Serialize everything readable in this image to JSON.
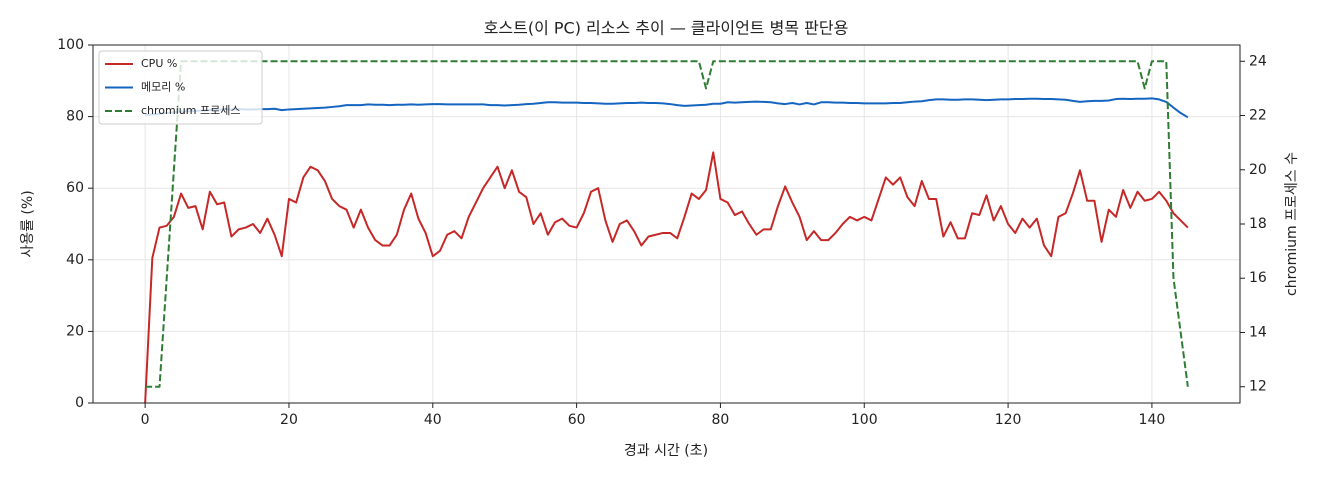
{
  "chart_data": {
    "type": "line",
    "title": "호스트(이 PC) 리소스 추이 — 클라이언트 병목 판단용",
    "xlabel": "경과 시간 (초)",
    "ylabel": "사용률 (%)",
    "y2label": "chromium 프로세스 수",
    "x": [
      0,
      1,
      2,
      3,
      4,
      5,
      6,
      7,
      8,
      9,
      10,
      11,
      12,
      13,
      14,
      15,
      16,
      17,
      18,
      19,
      20,
      21,
      22,
      23,
      24,
      25,
      26,
      27,
      28,
      29,
      30,
      31,
      32,
      33,
      34,
      35,
      36,
      37,
      38,
      39,
      40,
      41,
      42,
      43,
      44,
      45,
      46,
      47,
      48,
      49,
      50,
      51,
      52,
      53,
      54,
      55,
      56,
      57,
      58,
      59,
      60,
      61,
      62,
      63,
      64,
      65,
      66,
      67,
      68,
      69,
      70,
      71,
      72,
      73,
      74,
      75,
      76,
      77,
      78,
      79,
      80,
      81,
      82,
      83,
      84,
      85,
      86,
      87,
      88,
      89,
      90,
      91,
      92,
      93,
      94,
      95,
      96,
      97,
      98,
      99,
      100,
      101,
      102,
      103,
      104,
      105,
      106,
      107,
      108,
      109,
      110,
      111,
      112,
      113,
      114,
      115,
      116,
      117,
      118,
      119,
      120,
      121,
      122,
      123,
      124,
      125,
      126,
      127,
      128,
      129,
      130,
      131,
      132,
      133,
      134,
      135,
      136,
      137,
      138,
      139,
      140,
      141,
      142,
      143,
      144,
      145
    ],
    "series": [
      {
        "name": "CPU %",
        "color": "#c62828",
        "linestyle": "solid",
        "axis": "y",
        "values": [
          0,
          40.5,
          49,
          49.5,
          52,
          58.5,
          54.5,
          55,
          48.5,
          59,
          55.5,
          56,
          46.5,
          48.5,
          49,
          50,
          47.5,
          51.5,
          47,
          41,
          57,
          56,
          63,
          66,
          65,
          62,
          57,
          55,
          54,
          49,
          54,
          49,
          45.5,
          44,
          44,
          47,
          54,
          58.5,
          51.5,
          47.5,
          41,
          42.5,
          47,
          48,
          46,
          52,
          56,
          60,
          63,
          66,
          60,
          65,
          59,
          57.5,
          50,
          53,
          47,
          50.5,
          51.5,
          49.5,
          49,
          53,
          59,
          60,
          51,
          45,
          50,
          51,
          48,
          44,
          46.5,
          47,
          47.5,
          47.5,
          46,
          52,
          58.5,
          57,
          59.5,
          70,
          57,
          56,
          52.5,
          53.5,
          50,
          47,
          48.5,
          48.5,
          55,
          60.5,
          56,
          52,
          45.5,
          48,
          45.5,
          45.5,
          47.5,
          50,
          52,
          51,
          52,
          51,
          57,
          63,
          61,
          63,
          57.5,
          55,
          62,
          57,
          57,
          46.5,
          50.5,
          46,
          46,
          53,
          52.5,
          58,
          51,
          55,
          50,
          47.5,
          51.5,
          49,
          51.5,
          44,
          41,
          52,
          53,
          58.5,
          65,
          56.5,
          56.5,
          45,
          54,
          52,
          59.5,
          54.5,
          59,
          56.5,
          57,
          59,
          56.5,
          53,
          51,
          49
        ]
      },
      {
        "name": "메모리 %",
        "color": "#1565c0",
        "linestyle": "solid",
        "axis": "y",
        "values": [
          80.5,
          80.6,
          80.8,
          81,
          81.2,
          81.4,
          81.5,
          81.6,
          81.7,
          81.8,
          81.9,
          82,
          82,
          82.1,
          82,
          82,
          82.1,
          82.1,
          82.2,
          81.8,
          82,
          82.1,
          82.2,
          82.3,
          82.4,
          82.5,
          82.7,
          82.9,
          83.2,
          83.2,
          83.2,
          83.4,
          83.3,
          83.3,
          83.2,
          83.3,
          83.3,
          83.4,
          83.3,
          83.4,
          83.5,
          83.5,
          83.4,
          83.4,
          83.4,
          83.4,
          83.4,
          83.4,
          83.2,
          83.2,
          83.1,
          83.2,
          83.3,
          83.5,
          83.6,
          83.8,
          84,
          84,
          83.9,
          83.9,
          83.9,
          83.8,
          83.8,
          83.7,
          83.6,
          83.6,
          83.7,
          83.8,
          83.8,
          83.9,
          83.8,
          83.8,
          83.7,
          83.5,
          83.2,
          83,
          83.1,
          83.2,
          83.3,
          83.6,
          83.6,
          84,
          83.9,
          84,
          84.1,
          84.2,
          84.1,
          84,
          83.7,
          83.5,
          83.8,
          83.4,
          83.8,
          83.4,
          84,
          84,
          83.9,
          83.9,
          83.8,
          83.8,
          83.7,
          83.7,
          83.7,
          83.7,
          83.8,
          83.8,
          84,
          84.2,
          84.3,
          84.6,
          84.8,
          84.8,
          84.7,
          84.7,
          84.8,
          84.8,
          84.7,
          84.6,
          84.7,
          84.8,
          84.8,
          84.9,
          84.9,
          85,
          85,
          84.9,
          84.9,
          84.8,
          84.7,
          84.4,
          84.1,
          84.3,
          84.4,
          84.4,
          84.5,
          84.9,
          85,
          84.9,
          85,
          85,
          85.1,
          84.8,
          84.1,
          82.5,
          81,
          79.8
        ]
      },
      {
        "name": "chromium 프로세스",
        "color": "#2e7d32",
        "linestyle": "dashed",
        "axis": "y2",
        "values": [
          12,
          12,
          12,
          16,
          20,
          24,
          24,
          24,
          24,
          24,
          24,
          24,
          24,
          24,
          24,
          24,
          24,
          24,
          24,
          24,
          24,
          24,
          24,
          24,
          24,
          24,
          24,
          24,
          24,
          24,
          24,
          24,
          24,
          24,
          24,
          24,
          24,
          24,
          24,
          24,
          24,
          24,
          24,
          24,
          24,
          24,
          24,
          24,
          24,
          24,
          24,
          24,
          24,
          24,
          24,
          24,
          24,
          24,
          24,
          24,
          24,
          24,
          24,
          24,
          24,
          24,
          24,
          24,
          24,
          24,
          24,
          24,
          24,
          24,
          24,
          24,
          24,
          24,
          23,
          24,
          24,
          24,
          24,
          24,
          24,
          24,
          24,
          24,
          24,
          24,
          24,
          24,
          24,
          24,
          24,
          24,
          24,
          24,
          24,
          24,
          24,
          24,
          24,
          24,
          24,
          24,
          24,
          24,
          24,
          24,
          24,
          24,
          24,
          24,
          24,
          24,
          24,
          24,
          24,
          24,
          24,
          24,
          24,
          24,
          24,
          24,
          24,
          24,
          24,
          24,
          24,
          24,
          24,
          24,
          24,
          24,
          24,
          24,
          24,
          23,
          24,
          24,
          24,
          16,
          14,
          12
        ]
      }
    ],
    "xlim": [
      -7.25,
      152.25
    ],
    "xticks": [
      0,
      20,
      40,
      60,
      80,
      100,
      120,
      140
    ],
    "ylim": [
      0,
      100
    ],
    "yticks": [
      0,
      20,
      40,
      60,
      80,
      100
    ],
    "y2lim": [
      11.4,
      24.6
    ],
    "y2ticks": [
      12,
      14,
      16,
      18,
      20,
      22,
      24
    ],
    "grid": true,
    "legend": "upper left"
  }
}
